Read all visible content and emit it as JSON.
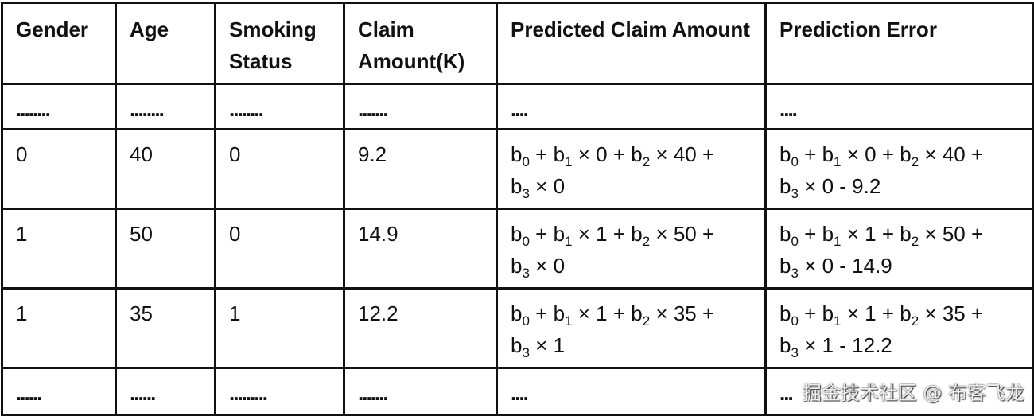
{
  "headers": [
    "Gender",
    "Age",
    "Smoking Status",
    "Claim Amount(K)",
    "Predicted Claim Amount",
    "Prediction Error"
  ],
  "ellipsis_row_top": [
    "........",
    "........",
    "........",
    ".......",
    "....",
    "...."
  ],
  "rows": [
    {
      "gender": "0",
      "age": "40",
      "smoking": "0",
      "claim": "9.2",
      "g": "0",
      "a": "40",
      "s": "0",
      "err_tail": " - 9.2"
    },
    {
      "gender": "1",
      "age": "50",
      "smoking": "0",
      "claim": "14.9",
      "g": "1",
      "a": "50",
      "s": "0",
      "err_tail": " - 14.9"
    },
    {
      "gender": "1",
      "age": "35",
      "smoking": "1",
      "claim": "12.2",
      "g": "1",
      "a": "35",
      "s": "1",
      "err_tail": " - 12.2"
    }
  ],
  "ellipsis_row_bottom": [
    "......",
    "......",
    ".........",
    ".......",
    "....",
    "..."
  ],
  "watermark": "掘金技术社区 @ 布客飞龙"
}
